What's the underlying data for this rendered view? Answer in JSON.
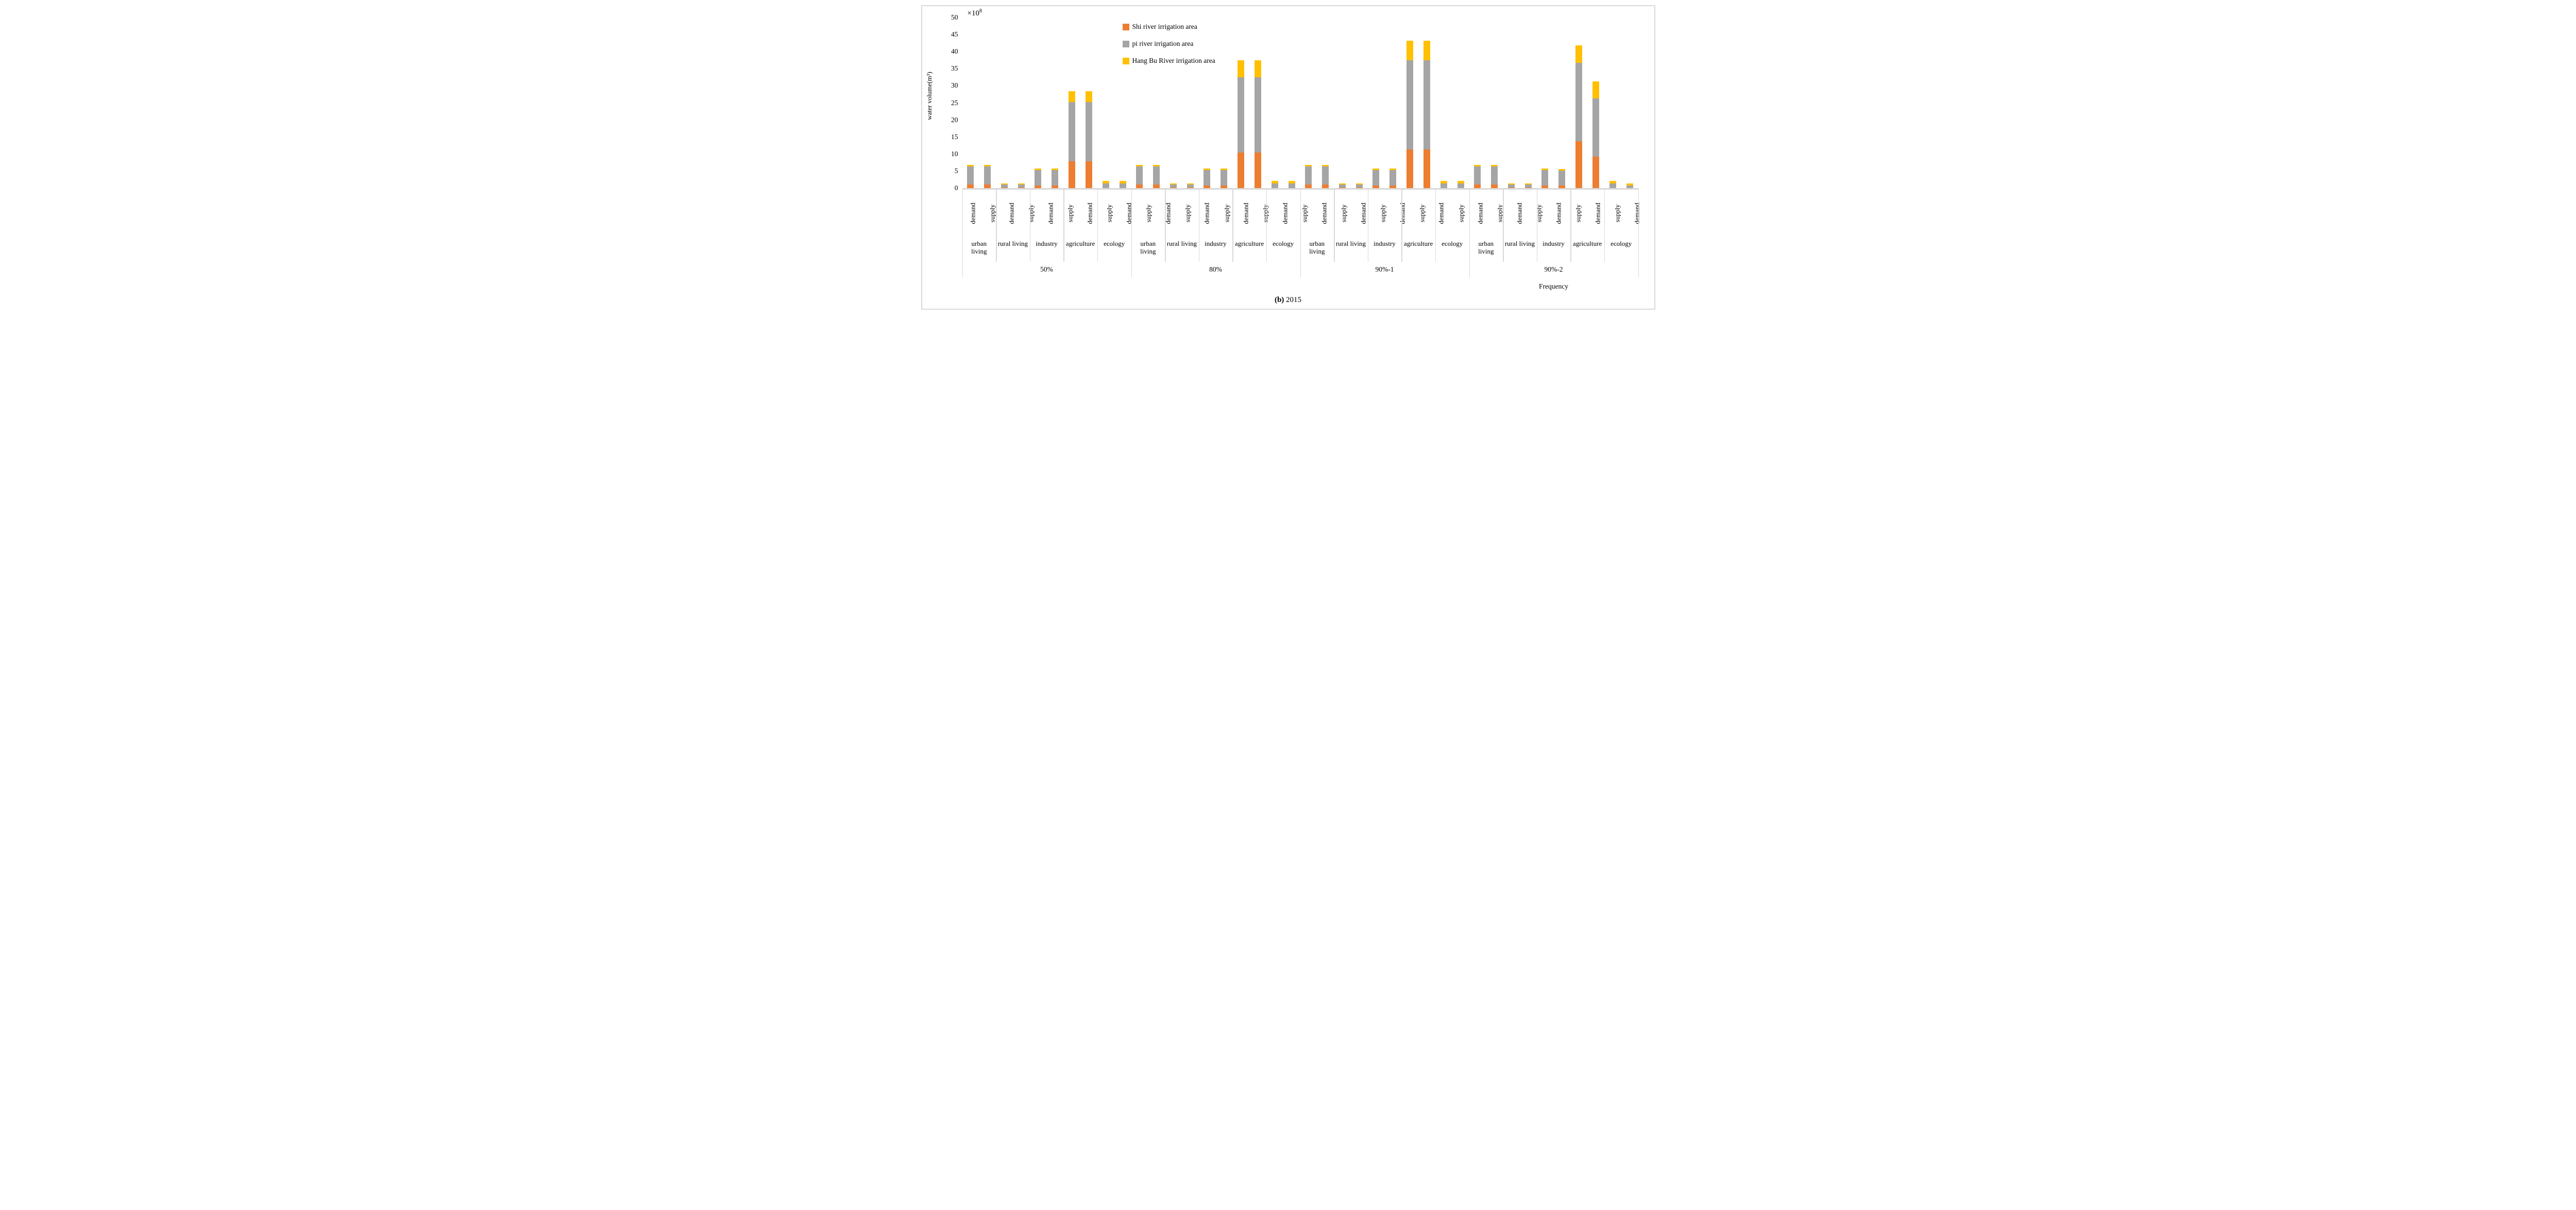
{
  "figure": {
    "y_axis_title": "water volume(m³)",
    "y_scale_label": {
      "base": "×10",
      "exponent": "8"
    },
    "x_axis_title": "Frequency",
    "caption": {
      "prefix": "(b)",
      "year": "2015"
    }
  },
  "legend": {
    "items": [
      {
        "label": "Shi river irrigation area",
        "color": "#ED7D31"
      },
      {
        "label": "pi river irrigation area",
        "color": "#A5A5A5"
      },
      {
        "label": "Hang Bu River irrigation area",
        "color": "#FFC000"
      }
    ]
  },
  "colors": {
    "shi_river": "#ED7D31",
    "pi_river": "#A5A5A5",
    "hang_bu_river": "#FFC000",
    "axis": "#D9D9D9",
    "text": "#000000"
  },
  "chart_data": {
    "type": "bar",
    "stacked": true,
    "title": "",
    "ylabel": "water volume(m³)",
    "xlabel": "Frequency",
    "unit_multiplier": "×10⁸ m³",
    "ylim": [
      0,
      50
    ],
    "y_ticks": [
      0,
      5,
      10,
      15,
      20,
      25,
      30,
      35,
      40,
      45,
      50
    ],
    "grid": false,
    "legend_position": "top-left-inside",
    "series": [
      {
        "name": "Shi river irrigation area",
        "color": "#ED7D31"
      },
      {
        "name": "pi river irrigation area",
        "color": "#A5A5A5"
      },
      {
        "name": "Hang Bu River irrigation area",
        "color": "#FFC000"
      }
    ],
    "bar_types": [
      "demand",
      "supply"
    ],
    "segment_order": [
      "Shi river",
      "pi river",
      "Hang Bu River"
    ],
    "groups": [
      {
        "label": "50%",
        "categories": [
          {
            "label": "urban living",
            "label_lines": [
              "urban",
              "living"
            ],
            "demand": [
              1.0,
              5.3,
              0.5
            ],
            "supply": [
              1.0,
              5.3,
              0.5
            ]
          },
          {
            "label": "rural living",
            "label_lines": [
              "rural living"
            ],
            "demand": [
              0.15,
              0.85,
              0.3
            ],
            "supply": [
              0.15,
              0.85,
              0.3
            ]
          },
          {
            "label": "industry",
            "label_lines": [
              "industry"
            ],
            "demand": [
              0.7,
              4.6,
              0.5
            ],
            "supply": [
              0.7,
              4.6,
              0.5
            ]
          },
          {
            "label": "agriculture",
            "label_lines": [
              "agriculture"
            ],
            "demand": [
              7.8,
              17.5,
              3.1
            ],
            "supply": [
              7.8,
              17.5,
              3.1
            ]
          },
          {
            "label": "ecology",
            "label_lines": [
              "ecology"
            ],
            "demand": [
              0,
              1.4,
              0.7
            ],
            "supply": [
              0,
              1.4,
              0.7
            ]
          }
        ]
      },
      {
        "label": "80%",
        "categories": [
          {
            "label": "urban living",
            "label_lines": [
              "urban",
              "living"
            ],
            "demand": [
              1.0,
              5.3,
              0.5
            ],
            "supply": [
              1.0,
              5.3,
              0.5
            ]
          },
          {
            "label": "rural living",
            "label_lines": [
              "rural living"
            ],
            "demand": [
              0.15,
              0.85,
              0.3
            ],
            "supply": [
              0.15,
              0.85,
              0.3
            ]
          },
          {
            "label": "industry",
            "label_lines": [
              "industry"
            ],
            "demand": [
              0.7,
              4.6,
              0.5
            ],
            "supply": [
              0.7,
              4.6,
              0.5
            ]
          },
          {
            "label": "agriculture",
            "label_lines": [
              "agriculture"
            ],
            "demand": [
              10.5,
              22.0,
              5.0
            ],
            "supply": [
              10.5,
              22.0,
              5.0
            ]
          },
          {
            "label": "ecology",
            "label_lines": [
              "ecology"
            ],
            "demand": [
              0,
              1.4,
              0.7
            ],
            "supply": [
              0,
              1.4,
              0.7
            ]
          }
        ]
      },
      {
        "label": "90%-1",
        "categories": [
          {
            "label": "urban living",
            "label_lines": [
              "urban",
              "living"
            ],
            "demand": [
              1.0,
              5.3,
              0.5
            ],
            "supply": [
              1.0,
              5.3,
              0.5
            ]
          },
          {
            "label": "rural living",
            "label_lines": [
              "rural living"
            ],
            "demand": [
              0.15,
              0.85,
              0.3
            ],
            "supply": [
              0.15,
              0.85,
              0.3
            ]
          },
          {
            "label": "industry",
            "label_lines": [
              "industry"
            ],
            "demand": [
              0.7,
              4.6,
              0.5
            ],
            "supply": [
              0.7,
              4.6,
              0.5
            ]
          },
          {
            "label": "agriculture",
            "label_lines": [
              "agriculture"
            ],
            "demand": [
              11.4,
              26.1,
              5.7
            ],
            "supply": [
              11.4,
              26.1,
              5.7
            ]
          },
          {
            "label": "ecology",
            "label_lines": [
              "ecology"
            ],
            "demand": [
              0,
              1.4,
              0.7
            ],
            "supply": [
              0,
              1.4,
              0.7
            ]
          }
        ]
      },
      {
        "label": "90%-2",
        "categories": [
          {
            "label": "urban living",
            "label_lines": [
              "urban",
              "living"
            ],
            "demand": [
              1.0,
              5.3,
              0.5
            ],
            "supply": [
              1.0,
              5.3,
              0.5
            ]
          },
          {
            "label": "rural living",
            "label_lines": [
              "rural living"
            ],
            "demand": [
              0.15,
              0.85,
              0.3
            ],
            "supply": [
              0.15,
              0.85,
              0.3
            ]
          },
          {
            "label": "industry",
            "label_lines": [
              "industry"
            ],
            "demand": [
              0.7,
              4.6,
              0.5
            ],
            "supply": [
              0.7,
              4.4,
              0.5
            ]
          },
          {
            "label": "agriculture",
            "label_lines": [
              "agriculture"
            ],
            "demand": [
              13.8,
              22.9,
              5.1
            ],
            "supply": [
              9.2,
              17.1,
              5.0
            ]
          },
          {
            "label": "ecology",
            "label_lines": [
              "ecology"
            ],
            "demand": [
              0,
              1.4,
              0.7
            ],
            "supply": [
              0,
              0.7,
              0.6
            ]
          }
        ]
      }
    ]
  }
}
